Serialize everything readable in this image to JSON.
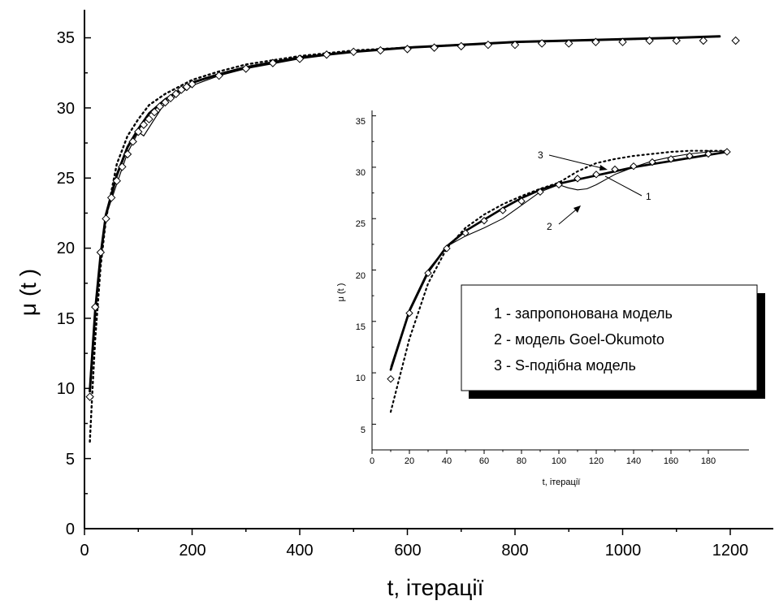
{
  "chart_data": [
    {
      "type": "line",
      "xlabel": "t, ітерації",
      "ylabel": "μ (t )",
      "xlim": [
        0,
        1280
      ],
      "ylim": [
        0,
        37
      ],
      "xticks": [
        "0",
        "200",
        "400",
        "600",
        "800",
        "1000",
        "1200"
      ],
      "xtick_values": [
        0,
        200,
        400,
        600,
        800,
        1000,
        1200
      ],
      "yticks": [
        "0",
        "5",
        "10",
        "15",
        "20",
        "25",
        "30",
        "35"
      ],
      "ytick_values": [
        0,
        5,
        10,
        15,
        20,
        25,
        30,
        35
      ],
      "series": [
        {
          "name": "запропонована модель",
          "style": "thick-solid",
          "x": [
            10,
            20,
            30,
            40,
            60,
            80,
            100,
            120,
            150,
            200,
            250,
            300,
            400,
            500,
            600,
            700,
            800,
            900,
            1000,
            1100,
            1180
          ],
          "y": [
            9.8,
            15.6,
            19.5,
            22.4,
            25.2,
            27.2,
            28.5,
            29.6,
            30.6,
            31.8,
            32.4,
            32.9,
            33.6,
            34.0,
            34.3,
            34.5,
            34.7,
            34.8,
            34.9,
            35.0,
            35.1
          ]
        },
        {
          "name": "модель Goel-Okumoto",
          "style": "thin-solid",
          "x": [
            10,
            20,
            30,
            40,
            60,
            80,
            100,
            110,
            125,
            150,
            200,
            250,
            300,
            400,
            500,
            600,
            700,
            800,
            900,
            1000,
            1100,
            1180
          ],
          "y": [
            10.4,
            15.9,
            19.8,
            22.3,
            24.6,
            26.8,
            28.3,
            28.0,
            28.9,
            30.4,
            31.6,
            32.3,
            32.8,
            33.5,
            34.0,
            34.3,
            34.5,
            34.7,
            34.8,
            34.9,
            35.0,
            35.1
          ]
        },
        {
          "name": "S-подібна модель",
          "style": "dotted",
          "x": [
            10,
            15,
            20,
            30,
            40,
            60,
            80,
            100,
            120,
            150,
            200,
            250,
            300,
            400,
            500,
            600,
            700,
            800,
            900,
            1000,
            1100,
            1180
          ],
          "y": [
            6.2,
            10.0,
            13.6,
            18.7,
            22.1,
            26.0,
            28.0,
            29.2,
            30.2,
            31.0,
            32.0,
            32.6,
            33.1,
            33.7,
            34.1,
            34.3,
            34.5,
            34.7,
            34.8,
            34.9,
            35.0,
            35.1
          ]
        }
      ],
      "observed": {
        "marker": "diamond",
        "x": [
          10,
          20,
          30,
          40,
          50,
          60,
          70,
          80,
          90,
          100,
          110,
          120,
          130,
          140,
          150,
          160,
          170,
          180,
          190,
          200,
          250,
          300,
          350,
          400,
          450,
          500,
          550,
          600,
          650,
          700,
          750,
          800,
          850,
          900,
          950,
          1000,
          1050,
          1100,
          1150,
          1210
        ],
        "y": [
          9.4,
          15.8,
          19.7,
          22.1,
          23.6,
          24.8,
          25.8,
          26.7,
          27.6,
          28.3,
          28.8,
          29.2,
          29.7,
          30.1,
          30.4,
          30.7,
          31.0,
          31.3,
          31.5,
          31.7,
          32.3,
          32.8,
          33.2,
          33.5,
          33.8,
          34.0,
          34.1,
          34.2,
          34.3,
          34.4,
          34.5,
          34.5,
          34.6,
          34.6,
          34.7,
          34.7,
          34.8,
          34.8,
          34.8,
          34.8
        ]
      }
    },
    {
      "type": "line",
      "xlabel": "t, ітерації",
      "ylabel": "μ (t )",
      "xlim": [
        0,
        200
      ],
      "ylim": [
        2.5,
        36
      ],
      "xticks": [
        "0",
        "20",
        "40",
        "60",
        "80",
        "100",
        "120",
        "140",
        "160",
        "180"
      ],
      "xtick_values": [
        0,
        20,
        40,
        60,
        80,
        100,
        120,
        140,
        160,
        180
      ],
      "yticks": [
        "5",
        "10",
        "15",
        "20",
        "25",
        "30",
        "35"
      ],
      "ytick_values": [
        5,
        10,
        15,
        20,
        25,
        30,
        35
      ],
      "legend": [
        "1 - запропонована модель",
        "2 - модель Goel-Okumoto",
        "3 - S-подібна модель"
      ],
      "callouts": [
        "1",
        "2",
        "3"
      ],
      "series": [
        {
          "name": "запропонована модель",
          "style": "thick-solid",
          "x": [
            10,
            20,
            30,
            40,
            50,
            60,
            70,
            80,
            90,
            100,
            110,
            120,
            130,
            140,
            150,
            160,
            170,
            180,
            190
          ],
          "y": [
            10.3,
            16.0,
            19.8,
            22.3,
            23.8,
            24.9,
            26.0,
            27.0,
            27.8,
            28.4,
            28.8,
            29.2,
            29.6,
            30.0,
            30.3,
            30.6,
            30.9,
            31.2,
            31.5
          ]
        },
        {
          "name": "модель Goel-Okumoto",
          "style": "thin-solid",
          "x": [
            10,
            20,
            30,
            40,
            50,
            60,
            70,
            80,
            90,
            100,
            105,
            110,
            115,
            120,
            130,
            140,
            150,
            160,
            170,
            180,
            190
          ],
          "y": [
            10.6,
            16.2,
            20.0,
            22.3,
            23.3,
            24.1,
            25.0,
            26.3,
            27.6,
            28.3,
            28.0,
            27.8,
            27.9,
            28.3,
            29.3,
            30.0,
            30.6,
            31.0,
            31.3,
            31.5,
            31.6
          ]
        },
        {
          "name": "S-подібна модель",
          "style": "dotted",
          "x": [
            10,
            20,
            30,
            40,
            50,
            60,
            70,
            80,
            90,
            100,
            110,
            120,
            130,
            140,
            150,
            160,
            170,
            180,
            190
          ],
          "y": [
            6.2,
            13.3,
            18.7,
            22.1,
            24.1,
            25.4,
            26.4,
            27.2,
            27.9,
            28.5,
            29.6,
            30.4,
            30.8,
            31.1,
            31.3,
            31.5,
            31.6,
            31.6,
            31.6
          ]
        }
      ],
      "observed": {
        "marker": "diamond",
        "x": [
          10,
          20,
          30,
          40,
          50,
          60,
          70,
          80,
          90,
          100,
          110,
          120,
          130,
          140,
          150,
          160,
          170,
          180,
          190
        ],
        "y": [
          9.4,
          15.8,
          19.7,
          22.1,
          23.6,
          24.8,
          25.8,
          26.7,
          27.6,
          28.3,
          28.9,
          29.3,
          29.8,
          30.1,
          30.5,
          30.8,
          31.1,
          31.3,
          31.5
        ]
      }
    }
  ]
}
